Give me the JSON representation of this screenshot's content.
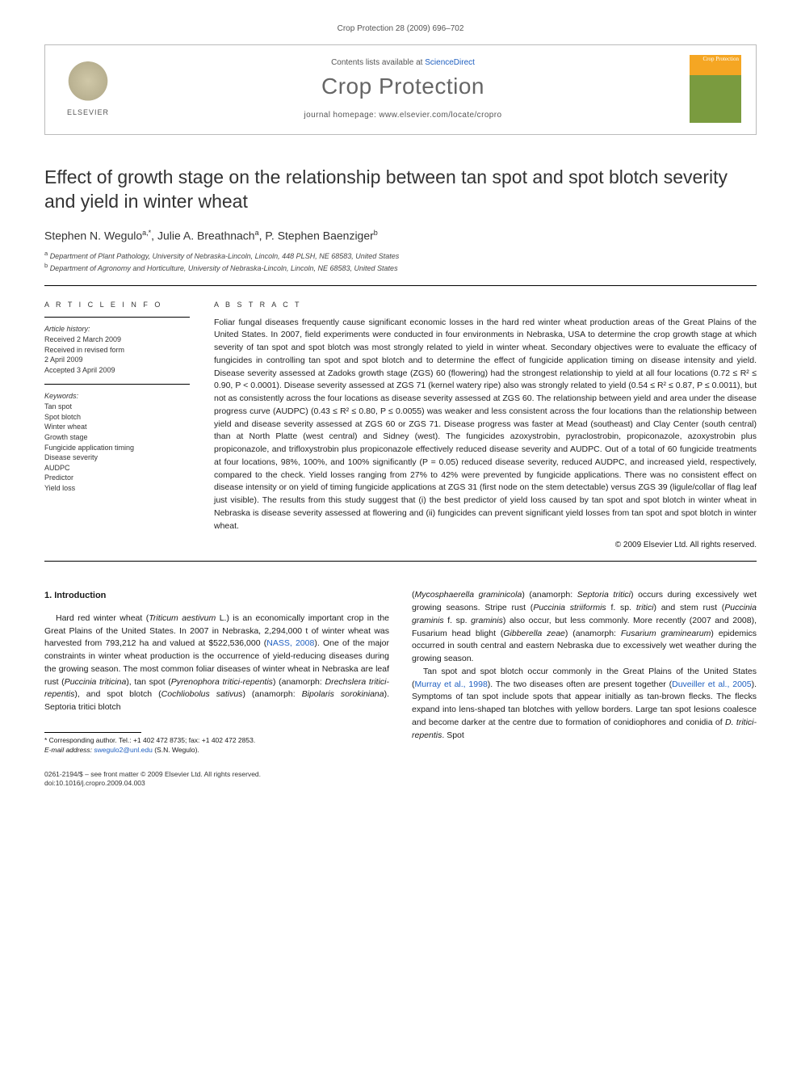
{
  "running_head": "Crop Protection 28 (2009) 696–702",
  "header": {
    "contents_prefix": "Contents lists available at ",
    "contents_link": "ScienceDirect",
    "journal": "Crop Protection",
    "homepage_label": "journal homepage: ",
    "homepage_url": "www.elsevier.com/locate/cropro",
    "elsevier": "ELSEVIER",
    "cover_text": "Crop Protection"
  },
  "title": "Effect of growth stage on the relationship between tan spot and spot blotch severity and yield in winter wheat",
  "authors_html": "Stephen N. Wegulo",
  "authors": [
    {
      "name": "Stephen N. Wegulo",
      "marks": "a,*"
    },
    {
      "name": "Julie A. Breathnach",
      "marks": "a"
    },
    {
      "name": "P. Stephen Baenziger",
      "marks": "b"
    }
  ],
  "affiliations": [
    {
      "mark": "a",
      "text": "Department of Plant Pathology, University of Nebraska-Lincoln, Lincoln, 448 PLSH, NE 68583, United States"
    },
    {
      "mark": "b",
      "text": "Department of Agronomy and Horticulture, University of Nebraska-Lincoln, Lincoln, NE 68583, United States"
    }
  ],
  "info": {
    "heading": "A R T I C L E  I N F O",
    "history_label": "Article history:",
    "history": [
      "Received 2 March 2009",
      "Received in revised form",
      "2 April 2009",
      "Accepted 3 April 2009"
    ],
    "keywords_label": "Keywords:",
    "keywords": [
      "Tan spot",
      "Spot blotch",
      "Winter wheat",
      "Growth stage",
      "Fungicide application timing",
      "Disease severity",
      "AUDPC",
      "Predictor",
      "Yield loss"
    ]
  },
  "abstract": {
    "heading": "A B S T R A C T",
    "text": "Foliar fungal diseases frequently cause significant economic losses in the hard red winter wheat production areas of the Great Plains of the United States. In 2007, field experiments were conducted in four environments in Nebraska, USA to determine the crop growth stage at which severity of tan spot and spot blotch was most strongly related to yield in winter wheat. Secondary objectives were to evaluate the efficacy of fungicides in controlling tan spot and spot blotch and to determine the effect of fungicide application timing on disease intensity and yield. Disease severity assessed at Zadoks growth stage (ZGS) 60 (flowering) had the strongest relationship to yield at all four locations (0.72 ≤ R² ≤ 0.90, P < 0.0001). Disease severity assessed at ZGS 71 (kernel watery ripe) also was strongly related to yield (0.54 ≤ R² ≤ 0.87, P ≤ 0.0011), but not as consistently across the four locations as disease severity assessed at ZGS 60. The relationship between yield and area under the disease progress curve (AUDPC) (0.43 ≤ R² ≤ 0.80, P ≤ 0.0055) was weaker and less consistent across the four locations than the relationship between yield and disease severity assessed at ZGS 60 or ZGS 71. Disease progress was faster at Mead (southeast) and Clay Center (south central) than at North Platte (west central) and Sidney (west). The fungicides azoxystrobin, pyraclostrobin, propiconazole, azoxystrobin plus propiconazole, and trifloxystrobin plus propiconazole effectively reduced disease severity and AUDPC. Out of a total of 60 fungicide treatments at four locations, 98%, 100%, and 100% significantly (P = 0.05) reduced disease severity, reduced AUDPC, and increased yield, respectively, compared to the check. Yield losses ranging from 27% to 42% were prevented by fungicide applications. There was no consistent effect on disease intensity or on yield of timing fungicide applications at ZGS 31 (first node on the stem detectable) versus ZGS 39 (ligule/collar of flag leaf just visible). The results from this study suggest that (i) the best predictor of yield loss caused by tan spot and spot blotch in winter wheat in Nebraska is disease severity assessed at flowering and (ii) fungicides can prevent significant yield losses from tan spot and spot blotch in winter wheat.",
    "copyright": "© 2009 Elsevier Ltd. All rights reserved."
  },
  "body": {
    "section_heading": "1. Introduction",
    "col1": [
      "Hard red winter wheat (Triticum aestivum L.) is an economically important crop in the Great Plains of the United States. In 2007 in Nebraska, 2,294,000 t of winter wheat was harvested from 793,212 ha and valued at $522,536,000 (NASS, 2008). One of the major constraints in winter wheat production is the occurrence of yield-reducing diseases during the growing season. The most common foliar diseases of winter wheat in Nebraska are leaf rust (Puccinia triticina), tan spot (Pyrenophora tritici-repentis) (anamorph: Drechslera tritici-repentis), and spot blotch (Cochliobolus sativus) (anamorph: Bipolaris sorokiniana). Septoria tritici blotch"
    ],
    "col2": [
      "(Mycosphaerella graminicola) (anamorph: Septoria tritici) occurs during excessively wet growing seasons. Stripe rust (Puccinia striiformis f. sp. tritici) and stem rust (Puccinia graminis f. sp. graminis) also occur, but less commonly. More recently (2007 and 2008), Fusarium head blight (Gibberella zeae) (anamorph: Fusarium graminearum) epidemics occurred in south central and eastern Nebraska due to excessively wet weather during the growing season.",
      "Tan spot and spot blotch occur commonly in the Great Plains of the United States (Murray et al., 1998). The two diseases often are present together (Duveiller et al., 2005). Symptoms of tan spot include spots that appear initially as tan-brown flecks. The flecks expand into lens-shaped tan blotches with yellow borders. Large tan spot lesions coalesce and become darker at the centre due to formation of conidiophores and conidia of D. tritici-repentis. Spot"
    ]
  },
  "footnotes": {
    "corr": "* Corresponding author. Tel.: +1 402 472 8735; fax: +1 402 472 2853.",
    "email_label": "E-mail address: ",
    "email": "swegulo2@unl.edu",
    "email_suffix": " (S.N. Wegulo)."
  },
  "footer": {
    "left1": "0261-2194/$ – see front matter © 2009 Elsevier Ltd. All rights reserved.",
    "left2": "doi:10.1016/j.cropro.2009.04.003"
  }
}
